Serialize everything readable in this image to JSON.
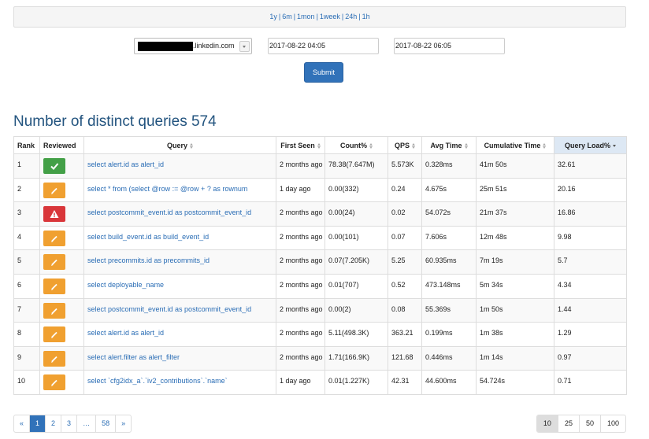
{
  "range_links": [
    "1y",
    "6m",
    "1mon",
    "1week",
    "24h",
    "1h"
  ],
  "separator": "|",
  "host_select": ".linkedin.com",
  "start_time": "2017-08-22 04:05",
  "end_time": "2017-08-22 06:05",
  "submit": "Submit",
  "heading": "Number of distinct queries 574",
  "table": {
    "columns": [
      {
        "label": "Rank",
        "sortable": false,
        "sorted": false,
        "width": 33
      },
      {
        "label": "Reviewed",
        "sortable": false,
        "sorted": false,
        "width": 56
      },
      {
        "label": "Query",
        "sortable": true,
        "sorted": false,
        "width": 244
      },
      {
        "label": "First Seen",
        "sortable": true,
        "sorted": false,
        "width": 62
      },
      {
        "label": "Count%",
        "sortable": true,
        "sorted": false,
        "width": 80
      },
      {
        "label": "QPS",
        "sortable": true,
        "sorted": false,
        "width": 43
      },
      {
        "label": "Avg Time",
        "sortable": true,
        "sorted": false,
        "width": 69
      },
      {
        "label": "Cumulative Time",
        "sortable": true,
        "sorted": false,
        "width": 99
      },
      {
        "label": "Query Load%",
        "sortable": true,
        "sorted": true,
        "width": 92
      }
    ],
    "rows": [
      {
        "rank": 1,
        "status": "ok",
        "query": "select alert.id as alert_id",
        "first_seen": "2 months ago",
        "count": "78.38(7.647M)",
        "qps": "5.573K",
        "avg_time": "0.328ms",
        "cumulative_time": "41m 50s",
        "query_load": "32.61"
      },
      {
        "rank": 2,
        "status": "edit",
        "query": "select * from (select @row := @row + ? as rownum",
        "first_seen": "1 day ago",
        "count": "0.00(332)",
        "qps": "0.24",
        "avg_time": "4.675s",
        "cumulative_time": "25m 51s",
        "query_load": "20.16"
      },
      {
        "rank": 3,
        "status": "warn",
        "query": "select postcommit_event.id as postcommit_event_id",
        "first_seen": "2 months ago",
        "count": "0.00(24)",
        "qps": "0.02",
        "avg_time": "54.072s",
        "cumulative_time": "21m 37s",
        "query_load": "16.86"
      },
      {
        "rank": 4,
        "status": "edit",
        "query": "select build_event.id as build_event_id",
        "first_seen": "2 months ago",
        "count": "0.00(101)",
        "qps": "0.07",
        "avg_time": "7.606s",
        "cumulative_time": "12m 48s",
        "query_load": "9.98"
      },
      {
        "rank": 5,
        "status": "edit",
        "query": "select precommits.id as precommits_id",
        "first_seen": "2 months ago",
        "count": "0.07(7.205K)",
        "qps": "5.25",
        "avg_time": "60.935ms",
        "cumulative_time": "7m 19s",
        "query_load": "5.7"
      },
      {
        "rank": 6,
        "status": "edit",
        "query": "select deployable_name",
        "first_seen": "2 months ago",
        "count": "0.01(707)",
        "qps": "0.52",
        "avg_time": "473.148ms",
        "cumulative_time": "5m 34s",
        "query_load": "4.34"
      },
      {
        "rank": 7,
        "status": "edit",
        "query": "select postcommit_event.id as postcommit_event_id",
        "first_seen": "2 months ago",
        "count": "0.00(2)",
        "qps": "0.08",
        "avg_time": "55.369s",
        "cumulative_time": "1m 50s",
        "query_load": "1.44"
      },
      {
        "rank": 8,
        "status": "edit",
        "query": "select alert.id as alert_id",
        "first_seen": "2 months ago",
        "count": "5.11(498.3K)",
        "qps": "363.21",
        "avg_time": "0.199ms",
        "cumulative_time": "1m 38s",
        "query_load": "1.29"
      },
      {
        "rank": 9,
        "status": "edit",
        "query": "select alert.filter as alert_filter",
        "first_seen": "2 months ago",
        "count": "1.71(166.9K)",
        "qps": "121.68",
        "avg_time": "0.446ms",
        "cumulative_time": "1m 14s",
        "query_load": "0.97"
      },
      {
        "rank": 10,
        "status": "edit",
        "query": "select `cfg2idx_a`.`iv2_contributions`.`name`",
        "first_seen": "1 day ago",
        "count": "0.01(1.227K)",
        "qps": "42.31",
        "avg_time": "44.600ms",
        "cumulative_time": "54.724s",
        "query_load": "0.71"
      }
    ]
  },
  "pagination": [
    {
      "label": "«",
      "active": false
    },
    {
      "label": "1",
      "active": true
    },
    {
      "label": "2",
      "active": false
    },
    {
      "label": "3",
      "active": false
    },
    {
      "label": "…",
      "active": false
    },
    {
      "label": "58",
      "active": false
    },
    {
      "label": "»",
      "active": false
    }
  ],
  "page_sizes": [
    {
      "label": 10,
      "active": true
    },
    {
      "label": 25,
      "active": false
    },
    {
      "label": 50,
      "active": false
    },
    {
      "label": 100,
      "active": false
    }
  ]
}
